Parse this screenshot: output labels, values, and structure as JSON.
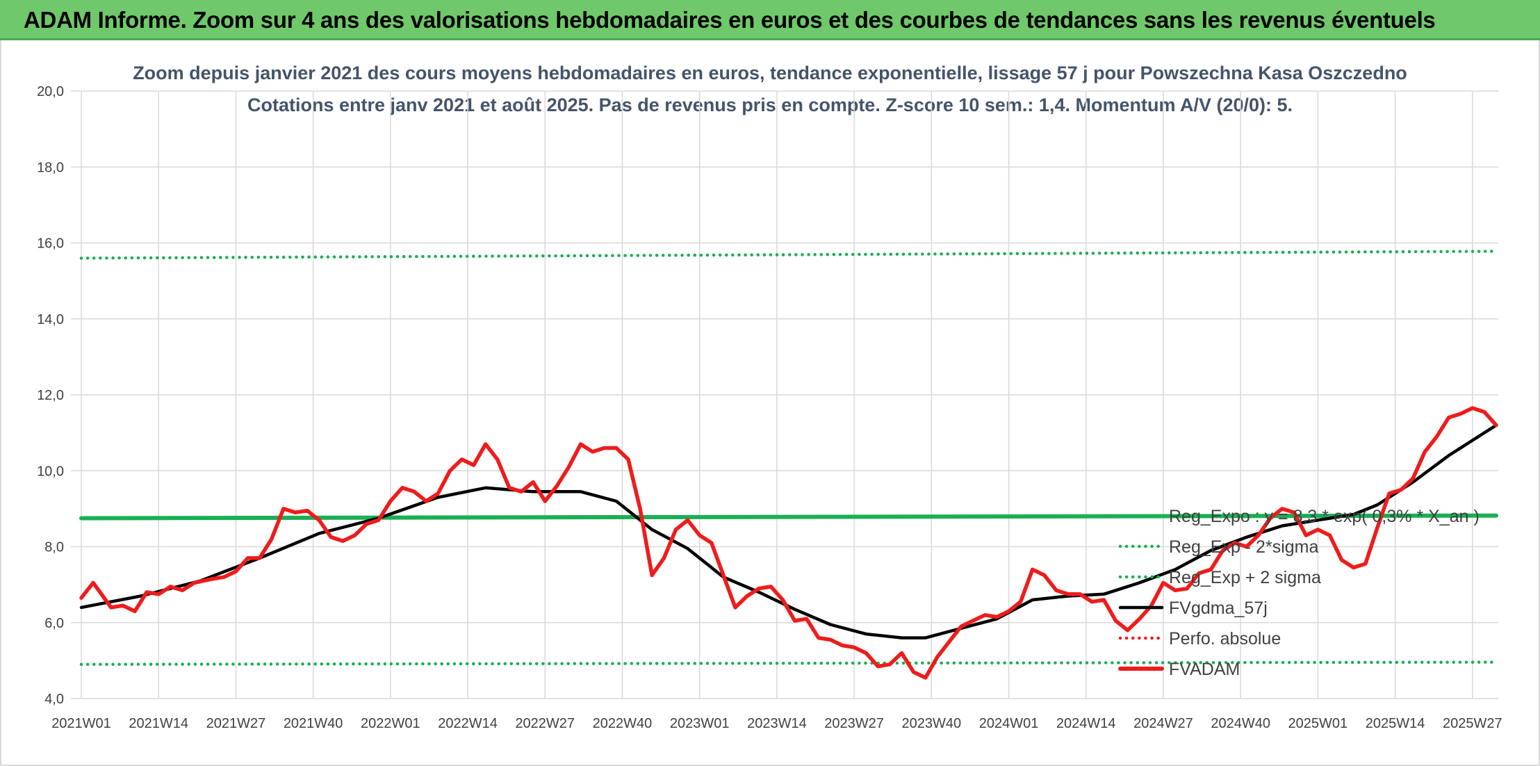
{
  "banner": {
    "title": "ADAM Informe. Zoom sur 4 ans des valorisations hebdomadaires en euros et des courbes de tendances sans les revenus éventuels"
  },
  "colors": {
    "banner_bg": "#6fc96a",
    "price": "#ee1c1c",
    "moving_average": "#000000",
    "regression": "#1aaf54",
    "perfo": "#ee1c1c"
  },
  "chart_data": {
    "type": "line",
    "title": "Zoom depuis janvier 2021 des cours moyens hebdomadaires en euros, tendance exponentielle, lissage 57 j pour Powszechna Kasa Oszczedno",
    "subtitle": "Cotations entre janv 2021 et août 2025. Pas de revenus pris en compte. Z-score 10 sem.: 1,4. Momentum A/V (20/0): 5.",
    "xlabel": "",
    "ylabel": "",
    "ylim": [
      4.0,
      20.0
    ],
    "y_ticks": [
      "4,0",
      "6,0",
      "8,0",
      "10,0",
      "12,0",
      "14,0",
      "16,0",
      "18,0",
      "20,0"
    ],
    "x_ticks": [
      "2021W01",
      "2021W14",
      "2021W27",
      "2021W40",
      "2022W01",
      "2022W14",
      "2022W27",
      "2022W40",
      "2023W01",
      "2023W14",
      "2023W27",
      "2023W40",
      "2024W01",
      "2024W14",
      "2024W27",
      "2024W40",
      "2025W01",
      "2025W14",
      "2025W27"
    ],
    "grid": true,
    "legend_position": "bottom-right",
    "legend": [
      "Reg_Expo : y = 8,3 * exp( 0,3% * X_an )",
      "Reg_Exp - 2*sigma",
      "Reg_Exp + 2 sigma",
      "FVgdma_57j",
      "Perfo. absolue",
      "FVADAM"
    ],
    "week_count": 239,
    "series": [
      {
        "name": "FVADAM",
        "style": "solid-thick",
        "points": [
          [
            0,
            6.65
          ],
          [
            2,
            7.05
          ],
          [
            5,
            6.4
          ],
          [
            7,
            6.45
          ],
          [
            9,
            6.3
          ],
          [
            11,
            6.8
          ],
          [
            13,
            6.75
          ],
          [
            15,
            6.95
          ],
          [
            17,
            6.85
          ],
          [
            19,
            7.05
          ],
          [
            22,
            7.15
          ],
          [
            24,
            7.2
          ],
          [
            26,
            7.35
          ],
          [
            28,
            7.7
          ],
          [
            30,
            7.7
          ],
          [
            32,
            8.2
          ],
          [
            34,
            9.0
          ],
          [
            36,
            8.9
          ],
          [
            38,
            8.95
          ],
          [
            40,
            8.7
          ],
          [
            42,
            8.25
          ],
          [
            44,
            8.15
          ],
          [
            46,
            8.3
          ],
          [
            48,
            8.6
          ],
          [
            50,
            8.7
          ],
          [
            52,
            9.2
          ],
          [
            54,
            9.55
          ],
          [
            56,
            9.45
          ],
          [
            58,
            9.2
          ],
          [
            60,
            9.4
          ],
          [
            62,
            10.0
          ],
          [
            64,
            10.3
          ],
          [
            66,
            10.15
          ],
          [
            68,
            10.7
          ],
          [
            70,
            10.3
          ],
          [
            72,
            9.55
          ],
          [
            74,
            9.45
          ],
          [
            76,
            9.7
          ],
          [
            78,
            9.2
          ],
          [
            80,
            9.6
          ],
          [
            82,
            10.1
          ],
          [
            84,
            10.7
          ],
          [
            86,
            10.5
          ],
          [
            88,
            10.6
          ],
          [
            90,
            10.6
          ],
          [
            92,
            10.3
          ],
          [
            94,
            9.0
          ],
          [
            96,
            7.25
          ],
          [
            98,
            7.7
          ],
          [
            100,
            8.45
          ],
          [
            102,
            8.7
          ],
          [
            104,
            8.3
          ],
          [
            106,
            8.1
          ],
          [
            108,
            7.25
          ],
          [
            110,
            6.4
          ],
          [
            112,
            6.7
          ],
          [
            114,
            6.9
          ],
          [
            116,
            6.95
          ],
          [
            118,
            6.6
          ],
          [
            120,
            6.05
          ],
          [
            122,
            6.1
          ],
          [
            124,
            5.6
          ],
          [
            126,
            5.55
          ],
          [
            128,
            5.4
          ],
          [
            130,
            5.35
          ],
          [
            132,
            5.2
          ],
          [
            134,
            4.85
          ],
          [
            136,
            4.9
          ],
          [
            138,
            5.2
          ],
          [
            140,
            4.7
          ],
          [
            142,
            4.55
          ],
          [
            144,
            5.1
          ],
          [
            146,
            5.5
          ],
          [
            148,
            5.9
          ],
          [
            150,
            6.05
          ],
          [
            152,
            6.2
          ],
          [
            154,
            6.15
          ],
          [
            156,
            6.3
          ],
          [
            158,
            6.55
          ],
          [
            160,
            7.4
          ],
          [
            162,
            7.25
          ],
          [
            164,
            6.85
          ],
          [
            166,
            6.75
          ],
          [
            168,
            6.75
          ],
          [
            170,
            6.55
          ],
          [
            172,
            6.6
          ],
          [
            174,
            6.05
          ],
          [
            176,
            5.8
          ],
          [
            178,
            6.1
          ],
          [
            180,
            6.45
          ],
          [
            182,
            7.05
          ],
          [
            184,
            6.85
          ],
          [
            186,
            6.9
          ],
          [
            188,
            7.3
          ],
          [
            190,
            7.4
          ],
          [
            192,
            7.9
          ],
          [
            194,
            8.1
          ],
          [
            196,
            8.0
          ],
          [
            198,
            8.3
          ],
          [
            200,
            8.75
          ],
          [
            202,
            9.0
          ],
          [
            204,
            8.9
          ],
          [
            206,
            8.3
          ],
          [
            208,
            8.45
          ],
          [
            210,
            8.3
          ],
          [
            212,
            7.65
          ],
          [
            214,
            7.45
          ],
          [
            216,
            7.55
          ],
          [
            218,
            8.5
          ],
          [
            220,
            9.4
          ],
          [
            222,
            9.5
          ],
          [
            224,
            9.8
          ],
          [
            226,
            10.5
          ],
          [
            228,
            10.9
          ],
          [
            230,
            11.4
          ],
          [
            232,
            11.5
          ],
          [
            234,
            11.65
          ],
          [
            236,
            11.55
          ],
          [
            238,
            11.2
          ]
        ]
      },
      {
        "name": "FVgdma_57j",
        "style": "solid-medium",
        "points": [
          [
            0,
            6.4
          ],
          [
            10,
            6.7
          ],
          [
            20,
            7.1
          ],
          [
            30,
            7.7
          ],
          [
            40,
            8.35
          ],
          [
            50,
            8.75
          ],
          [
            60,
            9.3
          ],
          [
            68,
            9.55
          ],
          [
            76,
            9.45
          ],
          [
            84,
            9.45
          ],
          [
            90,
            9.2
          ],
          [
            96,
            8.45
          ],
          [
            102,
            7.95
          ],
          [
            108,
            7.2
          ],
          [
            114,
            6.8
          ],
          [
            120,
            6.35
          ],
          [
            126,
            5.95
          ],
          [
            132,
            5.7
          ],
          [
            138,
            5.6
          ],
          [
            142,
            5.6
          ],
          [
            148,
            5.85
          ],
          [
            154,
            6.1
          ],
          [
            160,
            6.6
          ],
          [
            166,
            6.7
          ],
          [
            172,
            6.75
          ],
          [
            178,
            7.05
          ],
          [
            184,
            7.4
          ],
          [
            190,
            7.9
          ],
          [
            196,
            8.25
          ],
          [
            202,
            8.55
          ],
          [
            208,
            8.7
          ],
          [
            214,
            8.85
          ],
          [
            218,
            9.1
          ],
          [
            224,
            9.7
          ],
          [
            230,
            10.4
          ],
          [
            236,
            11.0
          ],
          [
            238,
            11.2
          ]
        ]
      },
      {
        "name": "Reg_Expo : y = 8,3 * exp( 0,3% * X_an )",
        "style": "solid-thick",
        "points": [
          [
            0,
            8.75
          ],
          [
            238,
            8.82
          ]
        ]
      },
      {
        "name": "Reg_Exp - 2*sigma",
        "style": "dotted",
        "points": [
          [
            0,
            4.9
          ],
          [
            238,
            4.96
          ]
        ]
      },
      {
        "name": "Reg_Exp + 2 sigma",
        "style": "dotted",
        "points": [
          [
            0,
            15.6
          ],
          [
            238,
            15.78
          ]
        ]
      }
    ]
  }
}
